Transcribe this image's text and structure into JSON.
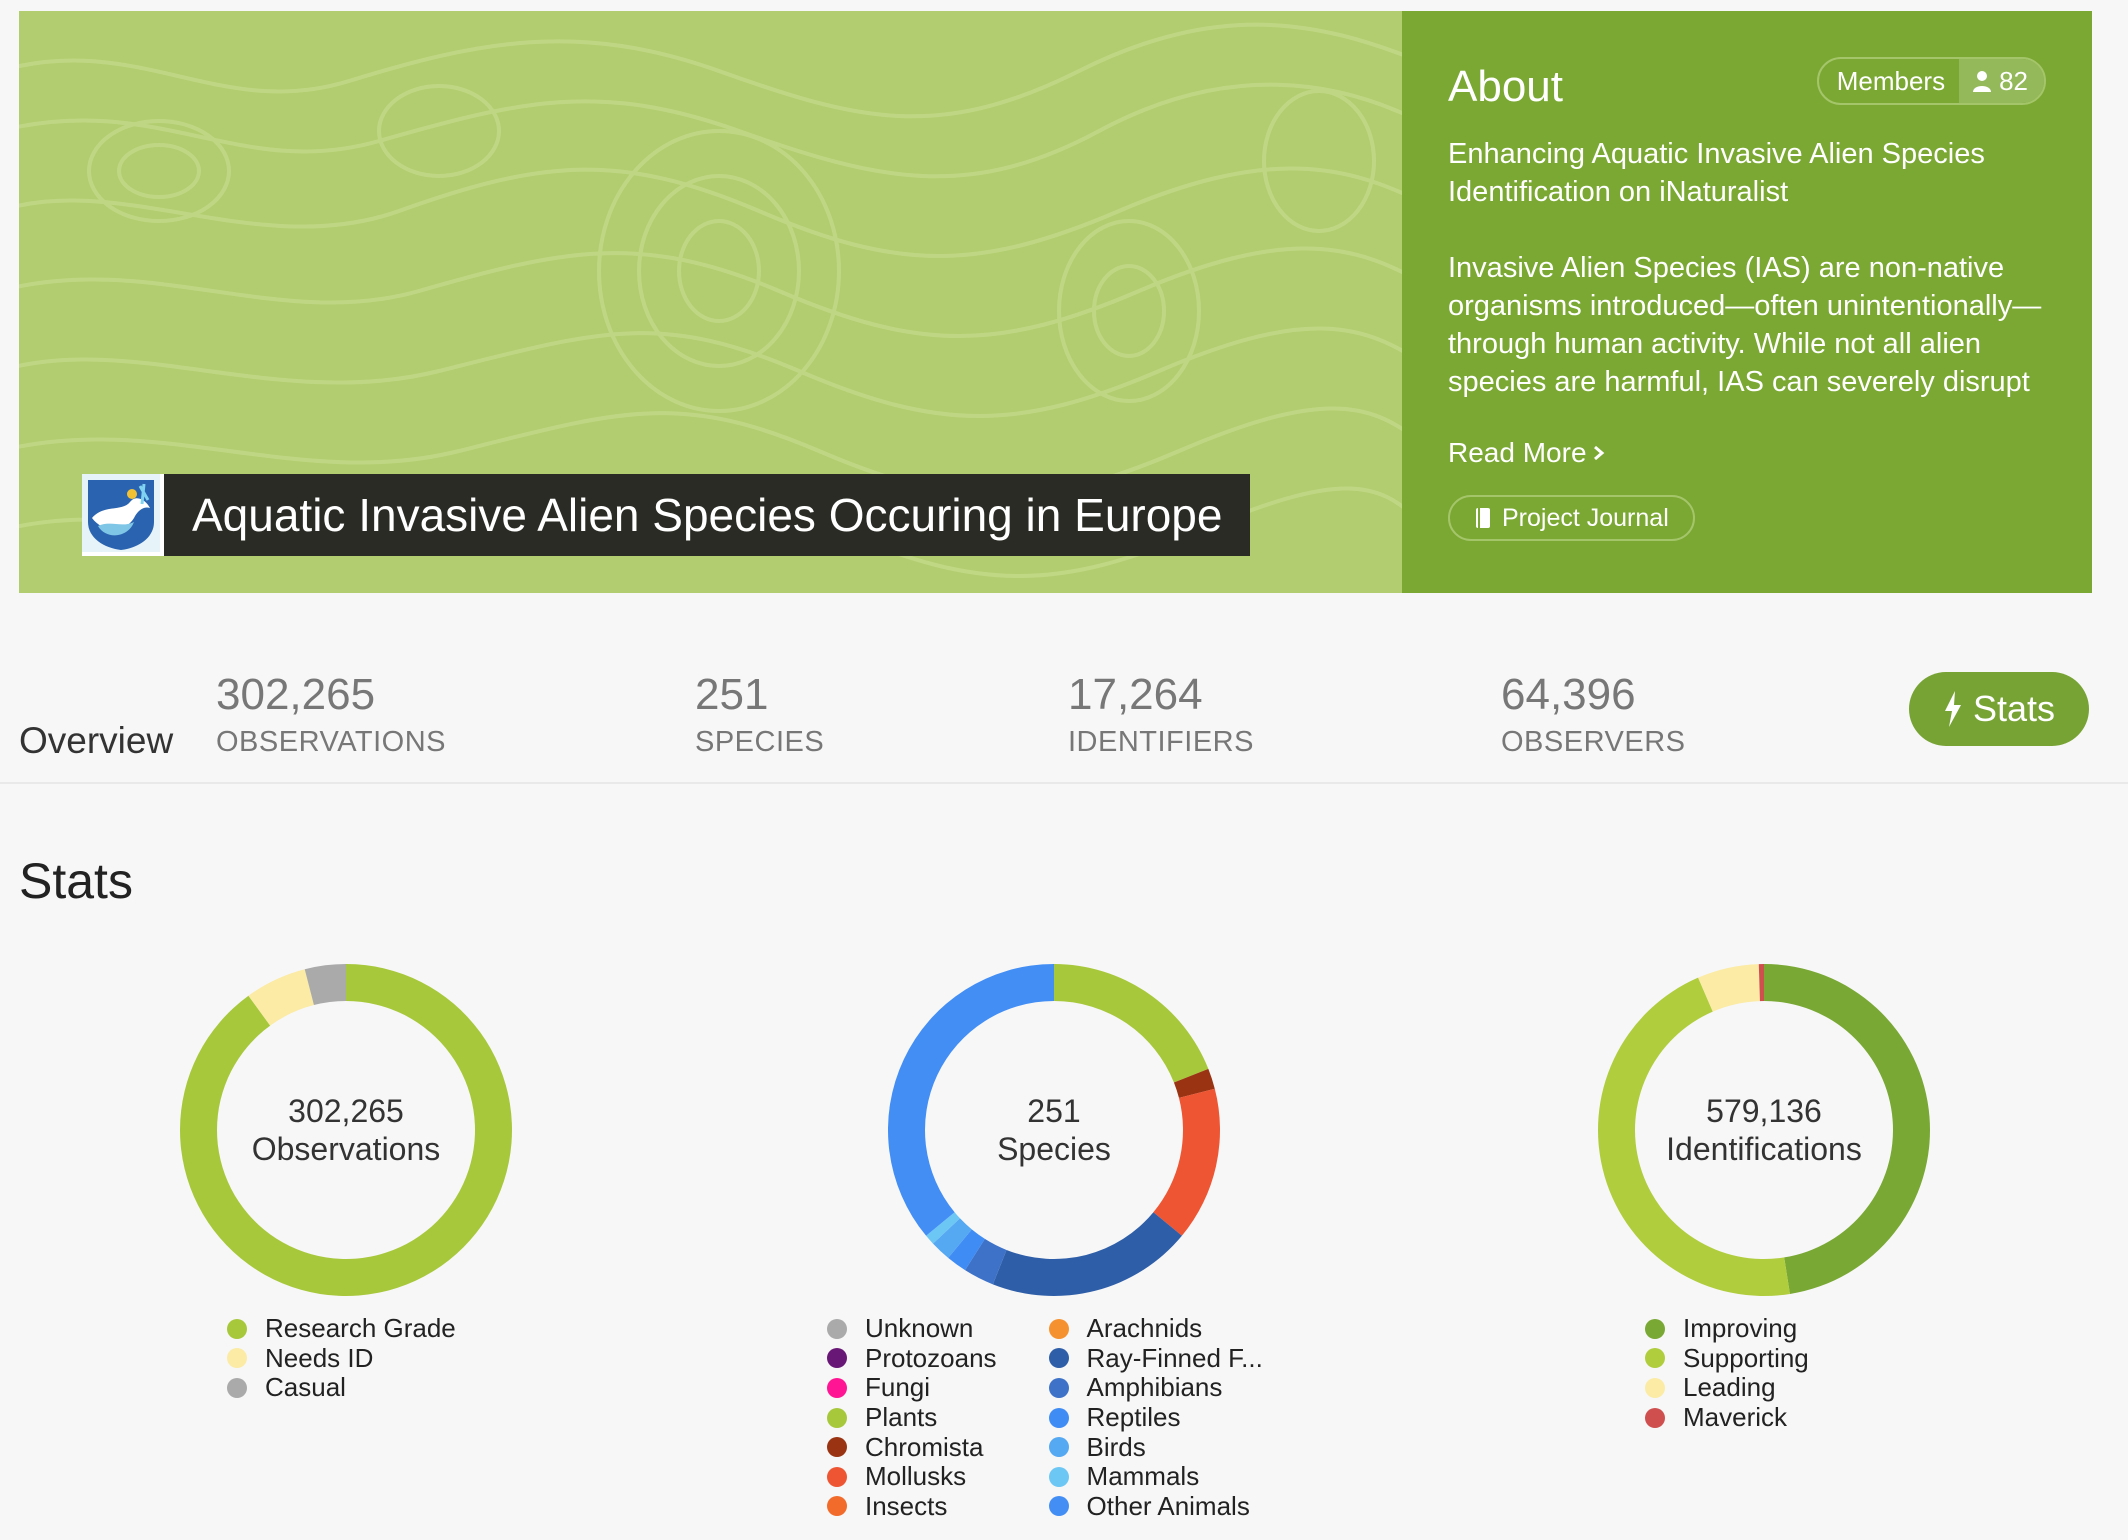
{
  "project": {
    "title": "Aquatic Invasive Alien Species Occuring in Europe",
    "icon": "project-logo-icon"
  },
  "about": {
    "heading": "About",
    "members_label": "Members",
    "members_count": "82",
    "tagline": "Enhancing Aquatic Invasive Alien Species Identification on iNaturalist",
    "description": "Invasive Alien Species (IAS) are non-native organisms introduced—often unintentionally—through human activity. While not all alien species are harmful, IAS can severely disrupt",
    "read_more": "Read More",
    "journal_label": "Project Journal"
  },
  "overview": {
    "label": "Overview",
    "stats": [
      {
        "value": "302,265",
        "label": "OBSERVATIONS"
      },
      {
        "value": "251",
        "label": "SPECIES"
      },
      {
        "value": "17,264",
        "label": "IDENTIFIERS"
      },
      {
        "value": "64,396",
        "label": "OBSERVERS"
      }
    ],
    "stats_button": "Stats"
  },
  "stats": {
    "heading": "Stats"
  },
  "colors": {
    "banner_green": "#b2cd6f",
    "about_green": "#7aa832",
    "button_green": "#77a334"
  },
  "chart_data": [
    {
      "type": "pie",
      "center_value": "302,265",
      "center_label": "Observations",
      "slices": [
        {
          "name": "Research Grade",
          "value": 90.0,
          "color": "#a8c83c"
        },
        {
          "name": "Needs ID",
          "value": 6.0,
          "color": "#fbeba5"
        },
        {
          "name": "Casual",
          "value": 4.0,
          "color": "#aaaaaa"
        }
      ]
    },
    {
      "type": "pie",
      "center_value": "251",
      "center_label": "Species",
      "slices": [
        {
          "name": "Unknown",
          "value": 0,
          "color": "#aaaaaa"
        },
        {
          "name": "Protozoans",
          "value": 0,
          "color": "#691776"
        },
        {
          "name": "Fungi",
          "value": 0,
          "color": "#ff1493"
        },
        {
          "name": "Plants",
          "value": 19.0,
          "color": "#a8c83c"
        },
        {
          "name": "Chromista",
          "value": 2.0,
          "color": "#993311"
        },
        {
          "name": "Mollusks",
          "value": 15.0,
          "color": "#ee5533"
        },
        {
          "name": "Insects",
          "value": 0,
          "color": "#f26b2a"
        },
        {
          "name": "Arachnids",
          "value": 0,
          "color": "#f5922f"
        },
        {
          "name": "Ray-Finned F...",
          "value": 20.0,
          "color": "#2e5ea8"
        },
        {
          "name": "Amphibians",
          "value": 3.0,
          "color": "#3d72c8"
        },
        {
          "name": "Reptiles",
          "value": 2.0,
          "color": "#3f8cf5"
        },
        {
          "name": "Birds",
          "value": 2.0,
          "color": "#55a8f2"
        },
        {
          "name": "Mammals",
          "value": 1.0,
          "color": "#6cc7f5"
        },
        {
          "name": "Other Animals",
          "value": 36.0,
          "color": "#428ef5"
        }
      ]
    },
    {
      "type": "pie",
      "center_value": "579,136",
      "center_label": "Identifications",
      "slices": [
        {
          "name": "Improving",
          "value": 47.5,
          "color": "#79a834"
        },
        {
          "name": "Supporting",
          "value": 46.0,
          "color": "#b0cd3e"
        },
        {
          "name": "Leading",
          "value": 6.0,
          "color": "#fbeba5"
        },
        {
          "name": "Maverick",
          "value": 0.5,
          "color": "#cf4f4f"
        }
      ]
    }
  ]
}
